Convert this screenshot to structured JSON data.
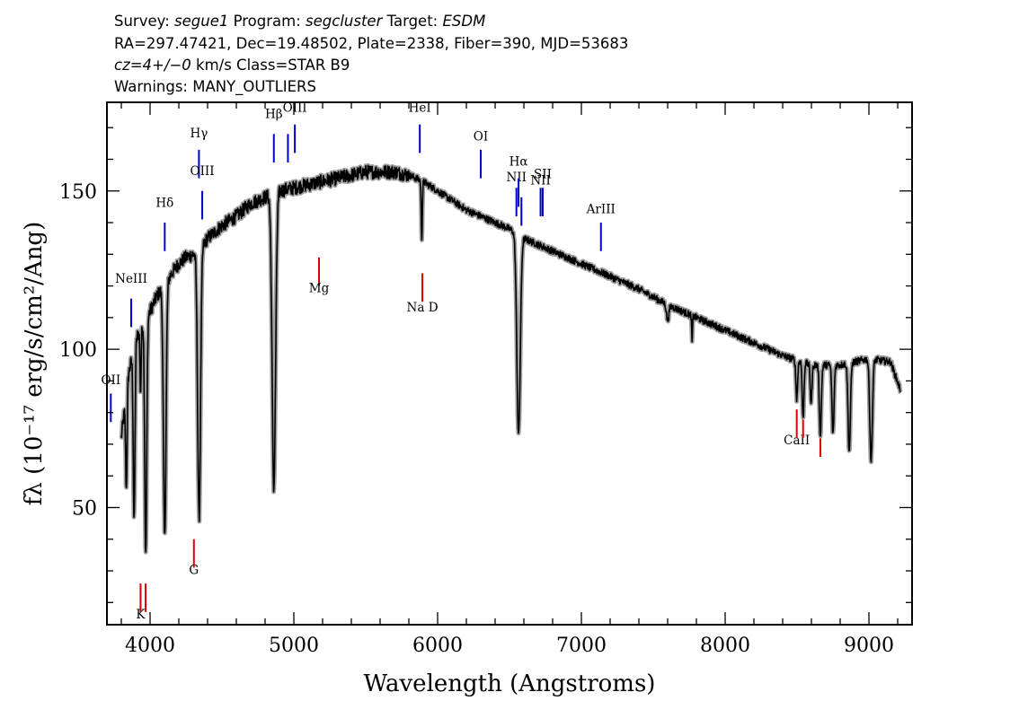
{
  "header": {
    "survey_label": "Survey:",
    "survey": "segue1",
    "program_label": "Program:",
    "program": "segcluster",
    "target_label": "Target:",
    "target": "ESDM",
    "line2": "RA=297.47421, Dec=19.48502, Plate=2338, Fiber=390, MJD=53683",
    "cz": "cz=4+/−0",
    "line3_rest": "km/s  Class=STAR  B9",
    "line4": "Warnings: MANY_OUTLIERS"
  },
  "chart_data": {
    "type": "line",
    "xlabel": "Wavelength (Angstroms)",
    "ylabel": "fλ (10⁻¹⁷ erg/s/cm²/Ang)",
    "xlim": [
      3700,
      9300
    ],
    "ylim": [
      13,
      178
    ],
    "xticks": [
      4000,
      5000,
      6000,
      7000,
      8000,
      9000
    ],
    "yticks": [
      50,
      100,
      150
    ],
    "grid": false,
    "line_color": "#000000",
    "error_color": "#a0a0a0",
    "continuum": [
      [
        3800,
        72
      ],
      [
        3850,
        92
      ],
      [
        3900,
        103
      ],
      [
        3950,
        108
      ],
      [
        4000,
        112
      ],
      [
        4050,
        117
      ],
      [
        4100,
        120
      ],
      [
        4150,
        124
      ],
      [
        4200,
        127
      ],
      [
        4250,
        129
      ],
      [
        4300,
        130
      ],
      [
        4350,
        132
      ],
      [
        4400,
        135
      ],
      [
        4500,
        139
      ],
      [
        4600,
        142
      ],
      [
        4700,
        146
      ],
      [
        4800,
        148
      ],
      [
        4900,
        150
      ],
      [
        5000,
        151
      ],
      [
        5100,
        152
      ],
      [
        5200,
        153
      ],
      [
        5300,
        154
      ],
      [
        5400,
        155
      ],
      [
        5500,
        156
      ],
      [
        5600,
        156
      ],
      [
        5700,
        156
      ],
      [
        5800,
        155
      ],
      [
        5900,
        153
      ],
      [
        6000,
        150
      ],
      [
        6100,
        147
      ],
      [
        6200,
        144
      ],
      [
        6300,
        142
      ],
      [
        6400,
        140
      ],
      [
        6500,
        138
      ],
      [
        6600,
        135
      ],
      [
        6700,
        133
      ],
      [
        6800,
        131
      ],
      [
        6900,
        129
      ],
      [
        7000,
        127
      ],
      [
        7200,
        123
      ],
      [
        7400,
        119
      ],
      [
        7600,
        114
      ],
      [
        7800,
        110
      ],
      [
        8000,
        106
      ],
      [
        8200,
        102
      ],
      [
        8400,
        98
      ],
      [
        8600,
        95
      ],
      [
        8800,
        95
      ],
      [
        9000,
        97
      ],
      [
        9150,
        96
      ],
      [
        9220,
        87
      ]
    ],
    "absorption_lines": [
      {
        "x": 3835,
        "depth": 30,
        "width": 5
      },
      {
        "x": 3889,
        "depth": 55,
        "width": 6
      },
      {
        "x": 3934,
        "depth": 20,
        "width": 4
      },
      {
        "x": 3970,
        "depth": 75,
        "width": 7
      },
      {
        "x": 4102,
        "depth": 80,
        "width": 9
      },
      {
        "x": 4341,
        "depth": 85,
        "width": 10
      },
      {
        "x": 4861,
        "depth": 93,
        "width": 12
      },
      {
        "x": 5890,
        "depth": 18,
        "width": 4
      },
      {
        "x": 6563,
        "depth": 63,
        "width": 12
      },
      {
        "x": 7600,
        "depth": 5,
        "width": 8
      },
      {
        "x": 7770,
        "depth": 8,
        "width": 3
      },
      {
        "x": 8498,
        "depth": 12,
        "width": 6
      },
      {
        "x": 8542,
        "depth": 18,
        "width": 6
      },
      {
        "x": 8598,
        "depth": 12,
        "width": 6
      },
      {
        "x": 8662,
        "depth": 22,
        "width": 7
      },
      {
        "x": 8750,
        "depth": 22,
        "width": 7
      },
      {
        "x": 8863,
        "depth": 28,
        "width": 8
      },
      {
        "x": 9015,
        "depth": 32,
        "width": 9
      }
    ],
    "emission_lines": [
      {
        "label": "OII",
        "x": 3727,
        "y0": 77,
        "y1": 86,
        "label_y": 89
      },
      {
        "label": "NeIII",
        "x": 3869,
        "y0": 107,
        "y1": 116,
        "label_y": 121
      },
      {
        "label": "Hδ",
        "x": 4102,
        "y0": 131,
        "y1": 140,
        "label_y": 145
      },
      {
        "label": "Hγ",
        "x": 4340,
        "y0": 154,
        "y1": 163,
        "label_y": 167
      },
      {
        "label": "OIII",
        "x": 4363,
        "y0": 141,
        "y1": 150,
        "label_y": 155
      },
      {
        "label": "Hβ",
        "x": 4861,
        "y0": 159,
        "y1": 168,
        "label_y": 173
      },
      {
        "label": "OIII",
        "x": 4959,
        "y0": 159,
        "y1": 168,
        "label_y": null
      },
      {
        "label": "OIII",
        "x": 5007,
        "y0": 162,
        "y1": 171,
        "label_y": 175
      },
      {
        "label": "HeI",
        "x": 5876,
        "y0": 162,
        "y1": 171,
        "label_y": 175
      },
      {
        "label": "OI",
        "x": 6300,
        "y0": 154,
        "y1": 163,
        "label_y": 166
      },
      {
        "label": "NII",
        "x": 6548,
        "y0": 142,
        "y1": 151,
        "label_y": 153
      },
      {
        "label": "Hα",
        "x": 6563,
        "y0": 145,
        "y1": 154,
        "label_y": 158
      },
      {
        "label": "NII",
        "x": 6583,
        "y0": 139,
        "y1": 148,
        "label_y": null
      },
      {
        "label": "NII",
        "x": 6716,
        "y0": 142,
        "y1": 151,
        "label_y": 152
      },
      {
        "label": "SII",
        "x": 6731,
        "y0": 142,
        "y1": 151,
        "label_y": 154
      },
      {
        "label": "ArIII",
        "x": 7136,
        "y0": 131,
        "y1": 140,
        "label_y": 143
      }
    ],
    "stellar_lines": [
      {
        "label": "K",
        "x": 3934,
        "y0": 17,
        "y1": 26,
        "label_y": 15
      },
      {
        "label": "H",
        "x": 3969,
        "y0": 17,
        "y1": 26,
        "label_y": null
      },
      {
        "label": "G",
        "x": 4305,
        "y0": 31,
        "y1": 40,
        "label_y": 29
      },
      {
        "label": "Mg",
        "x": 5175,
        "y0": 120,
        "y1": 129,
        "label_y": 118
      },
      {
        "label": "Na D",
        "x": 5894,
        "y0": 115,
        "y1": 124,
        "label_y": 112
      },
      {
        "label": "CaII",
        "x": 8498,
        "y0": 72,
        "y1": 81,
        "label_y": 70
      },
      {
        "label": "CaII",
        "x": 8542,
        "y0": 72,
        "y1": 81,
        "label_y": null
      },
      {
        "label": "CaII",
        "x": 8662,
        "y0": 66,
        "y1": 75,
        "label_y": null
      }
    ],
    "emission_line_color": "#0000cc",
    "stellar_line_color": "#dd0000"
  }
}
